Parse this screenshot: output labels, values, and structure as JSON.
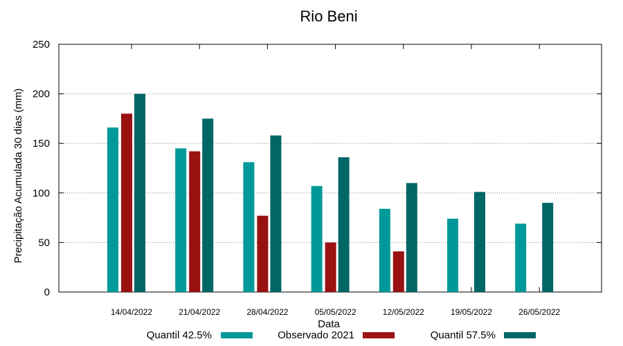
{
  "chart_data": {
    "type": "bar",
    "title": "Rio Beni",
    "xlabel": "Data",
    "ylabel": "Precipitação Acumulada 30 dias (mm)",
    "ylim": [
      0,
      250
    ],
    "yticks": [
      0,
      50,
      100,
      150,
      200,
      250
    ],
    "grid": true,
    "legend_position": "bottom",
    "categories": [
      "14/04/2022",
      "21/04/2022",
      "28/04/2022",
      "05/05/2022",
      "12/05/2022",
      "19/05/2022",
      "26/05/2022"
    ],
    "series": [
      {
        "name": "Quantil 42.5%",
        "color": "#009999",
        "values": [
          166,
          145,
          131,
          107,
          84,
          74,
          69
        ]
      },
      {
        "name": "Observado 2021",
        "color": "#991111",
        "values": [
          180,
          142,
          77,
          50,
          41,
          null,
          null
        ]
      },
      {
        "name": "Quantil 57.5%",
        "color": "#006666",
        "values": [
          200,
          175,
          158,
          136,
          110,
          101,
          90
        ]
      }
    ]
  }
}
